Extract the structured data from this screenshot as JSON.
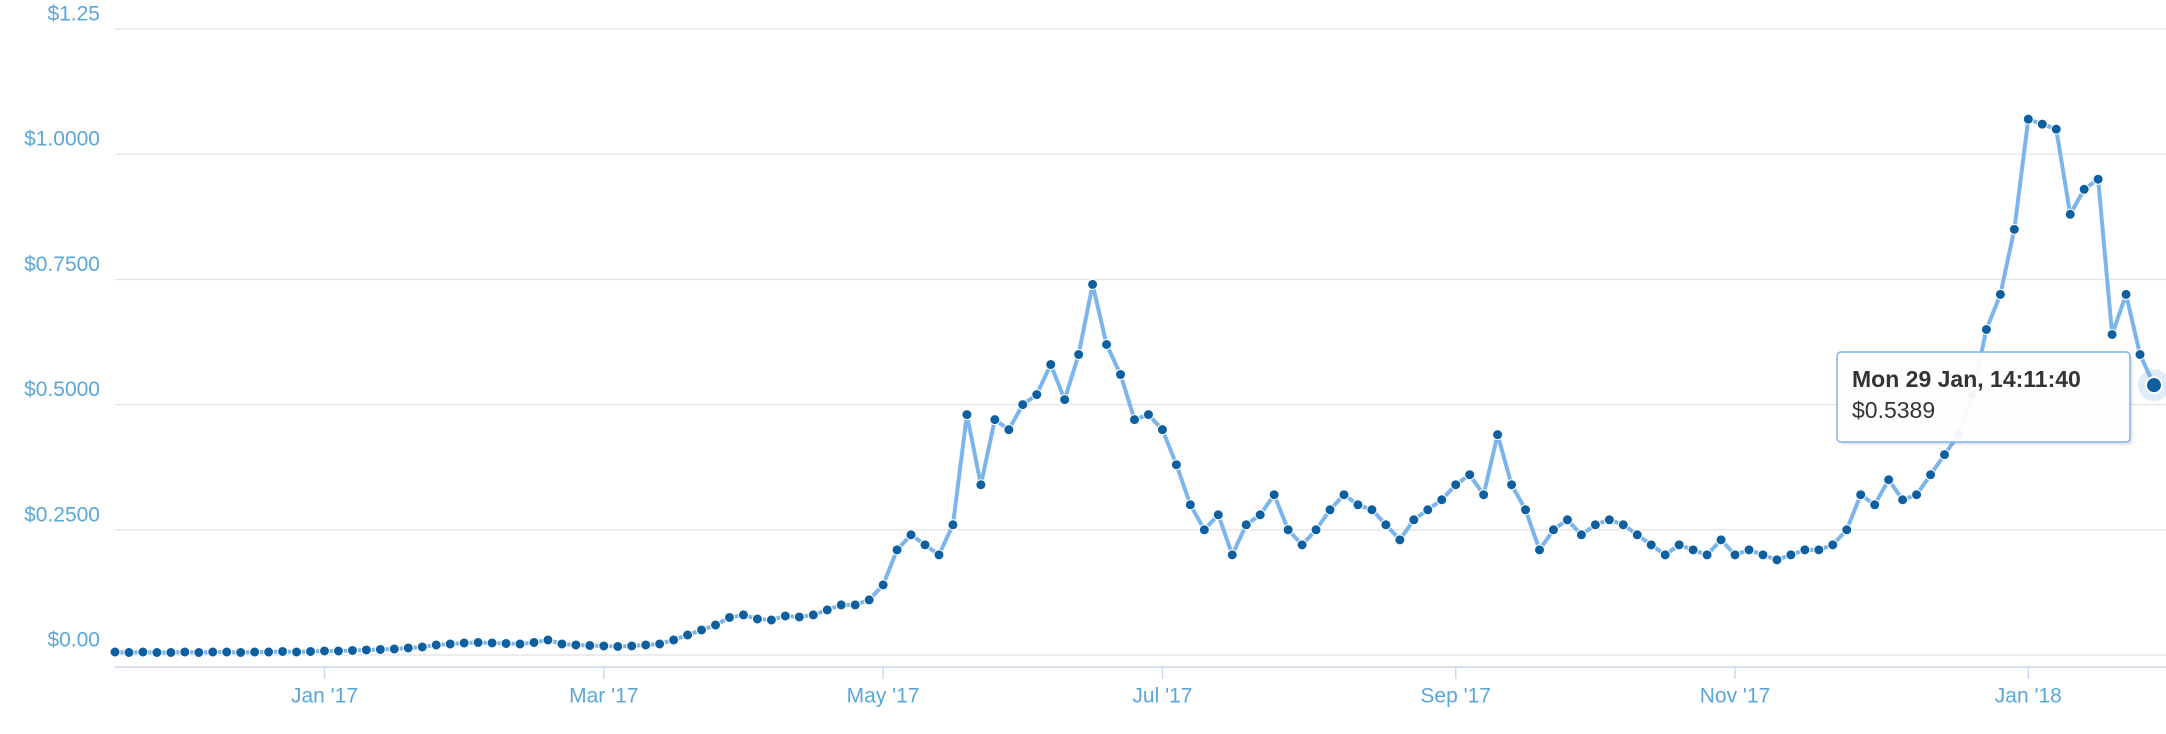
{
  "chart_data": {
    "type": "line",
    "color": "#7cb5ec",
    "marker_color": "#0d5fa0",
    "grid": true,
    "categories": [
      null,
      null,
      null,
      null,
      null,
      null,
      null,
      null,
      null,
      null,
      null,
      null,
      null,
      null,
      null,
      "Jan '17",
      null,
      null,
      null,
      null,
      null,
      null,
      null,
      null,
      null,
      null,
      null,
      null,
      null,
      null,
      null,
      null,
      null,
      null,
      null,
      "Mar '17",
      null,
      null,
      null,
      null,
      null,
      null,
      null,
      null,
      null,
      null,
      null,
      null,
      null,
      null,
      null,
      null,
      null,
      null,
      null,
      "May '17",
      null,
      null,
      null,
      null,
      null,
      null,
      null,
      null,
      null,
      null,
      null,
      null,
      null,
      null,
      null,
      null,
      null,
      null,
      null,
      "Jul '17",
      null,
      null,
      null,
      null,
      null,
      null,
      null,
      null,
      null,
      null,
      null,
      null,
      null,
      null,
      null,
      null,
      null,
      null,
      null,
      null,
      "Sep '17",
      null,
      null,
      null,
      null,
      null,
      null,
      null,
      null,
      null,
      null,
      null,
      null,
      null,
      null,
      null,
      null,
      null,
      null,
      null,
      "Nov '17",
      null,
      null,
      null,
      null,
      null,
      null,
      null,
      null,
      null,
      null,
      null,
      null,
      null,
      null,
      null,
      null,
      null,
      null,
      null,
      null,
      "Jan '18",
      null,
      null,
      null,
      null,
      null,
      null,
      null,
      null,
      null
    ],
    "values": [
      0.006,
      0.005,
      0.006,
      0.005,
      0.005,
      0.006,
      0.005,
      0.006,
      0.006,
      0.005,
      0.006,
      0.006,
      0.007,
      0.006,
      0.007,
      0.008,
      0.008,
      0.009,
      0.01,
      0.011,
      0.012,
      0.014,
      0.016,
      0.02,
      0.022,
      0.024,
      0.025,
      0.024,
      0.023,
      0.022,
      0.025,
      0.03,
      0.022,
      0.02,
      0.019,
      0.018,
      0.017,
      0.018,
      0.02,
      0.022,
      0.03,
      0.04,
      0.05,
      0.06,
      0.075,
      0.08,
      0.072,
      0.07,
      0.078,
      0.076,
      0.08,
      0.09,
      0.1,
      0.1,
      0.11,
      0.14,
      0.21,
      0.24,
      0.22,
      0.2,
      0.26,
      0.48,
      0.34,
      0.47,
      0.45,
      0.5,
      0.52,
      0.58,
      0.51,
      0.6,
      0.74,
      0.62,
      0.56,
      0.47,
      0.48,
      0.45,
      0.38,
      0.3,
      0.25,
      0.28,
      0.2,
      0.26,
      0.28,
      0.32,
      0.25,
      0.22,
      0.25,
      0.29,
      0.32,
      0.3,
      0.29,
      0.26,
      0.23,
      0.27,
      0.29,
      0.31,
      0.34,
      0.36,
      0.32,
      0.44,
      0.34,
      0.29,
      0.21,
      0.25,
      0.27,
      0.24,
      0.26,
      0.27,
      0.26,
      0.24,
      0.22,
      0.2,
      0.22,
      0.21,
      0.2,
      0.23,
      0.2,
      0.21,
      0.2,
      0.19,
      0.2,
      0.21,
      0.21,
      0.22,
      0.25,
      0.32,
      0.3,
      0.35,
      0.31,
      0.32,
      0.36,
      0.4,
      0.44,
      0.52,
      0.65,
      0.72,
      0.85,
      1.07,
      1.06,
      1.05,
      0.88,
      0.93,
      0.95,
      0.64,
      0.72,
      0.6,
      0.5389
    ],
    "ylim": [
      0,
      1.25
    ],
    "yticks": [
      {
        "value": 0,
        "label": "$0.00"
      },
      {
        "value": 0.25,
        "label": "$0.2500"
      },
      {
        "value": 0.5,
        "label": "$0.5000"
      },
      {
        "value": 0.75,
        "label": "$0.7500"
      },
      {
        "value": 1,
        "label": "$1.0000"
      },
      {
        "value": 1.25,
        "label": "$1.25"
      }
    ],
    "tooltip": {
      "title": "Mon 29 Jan, 14:11:40",
      "label": "$0.5389",
      "value": 0.5389
    }
  }
}
